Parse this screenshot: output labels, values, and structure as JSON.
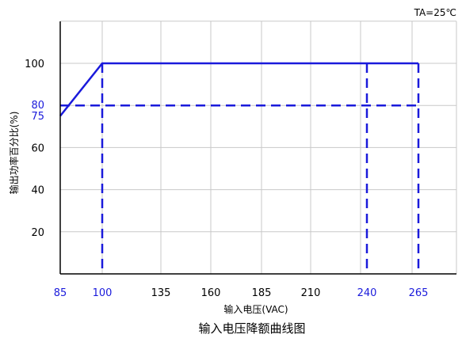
{
  "chart_data": {
    "type": "line",
    "title": "输入电压降额曲线图",
    "annotation": "TA=25℃",
    "xlabel": "输入电压(VAC)",
    "ylabel": "输出功率百分比(%)",
    "x_ticks": [
      {
        "value": 85,
        "label": "85",
        "highlight": true
      },
      {
        "value": 100,
        "label": "100",
        "highlight": true
      },
      {
        "value": 135,
        "label": "135",
        "highlight": false
      },
      {
        "value": 160,
        "label": "160",
        "highlight": false
      },
      {
        "value": 185,
        "label": "185",
        "highlight": false
      },
      {
        "value": 210,
        "label": "210",
        "highlight": false
      },
      {
        "value": 240,
        "label": "240",
        "highlight": true
      },
      {
        "value": 265,
        "label": "265",
        "highlight": true
      }
    ],
    "y_ticks": [
      {
        "value": 20,
        "label": "20",
        "highlight": false
      },
      {
        "value": 40,
        "label": "40",
        "highlight": false
      },
      {
        "value": 60,
        "label": "60",
        "highlight": false
      },
      {
        "value": 75,
        "label": "75",
        "highlight": true
      },
      {
        "value": 80,
        "label": "80",
        "highlight": true
      },
      {
        "value": 100,
        "label": "100",
        "highlight": false
      }
    ],
    "ylim": [
      0,
      120
    ],
    "grid": true,
    "series": [
      {
        "points": [
          [
            85,
            75
          ],
          [
            100,
            100
          ],
          [
            265,
            100
          ]
        ],
        "color": "#1a1adb",
        "style": "solid"
      }
    ],
    "reference_lines": [
      {
        "orientation": "horizontal",
        "value": 80,
        "style": "dashed",
        "color": "#1a1adb"
      },
      {
        "orientation": "vertical",
        "value": 100,
        "style": "dashed",
        "color": "#1a1adb"
      },
      {
        "orientation": "vertical",
        "value": 240,
        "style": "dashed",
        "color": "#1a1adb"
      },
      {
        "orientation": "vertical",
        "value": 265,
        "style": "dashed",
        "color": "#1a1adb"
      }
    ],
    "colors": {
      "curve": "#1a1adb",
      "grid": "#c8c8c8",
      "axis": "#000000",
      "highlight_tick": "#1a1adb"
    }
  }
}
